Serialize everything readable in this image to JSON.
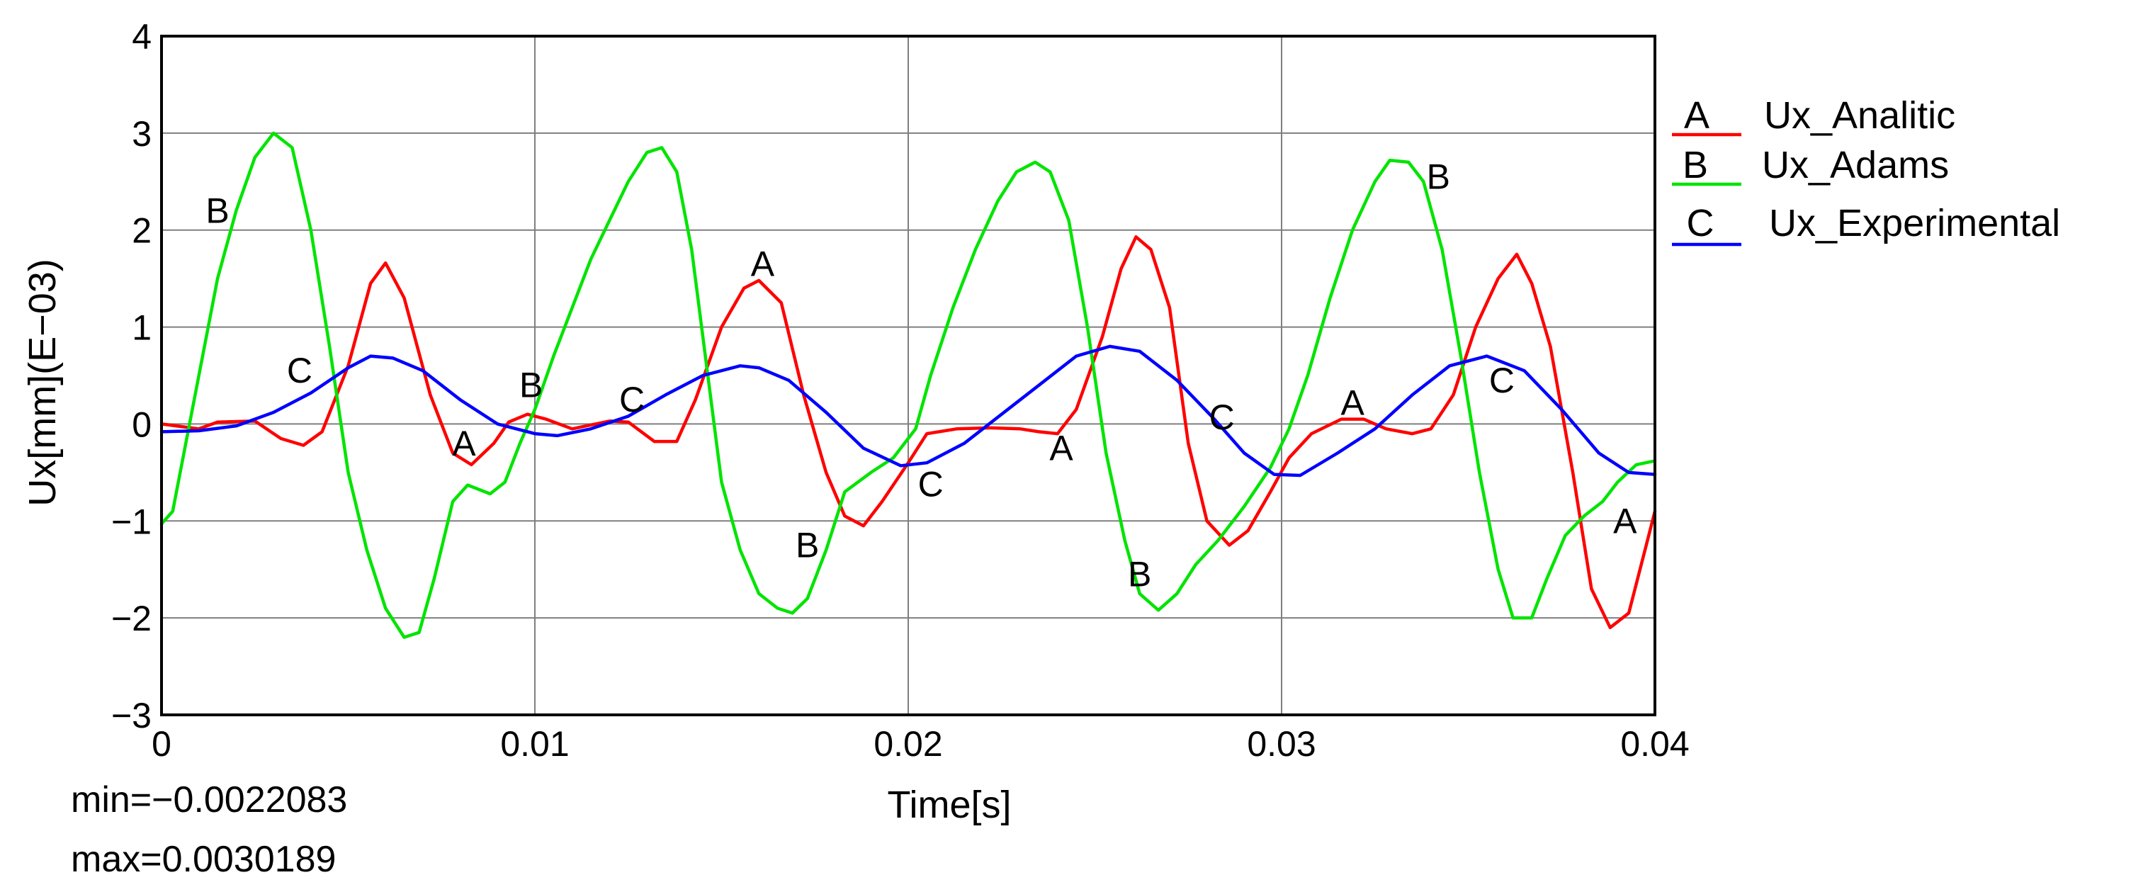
{
  "chart_data": {
    "type": "line",
    "xlabel": "Time[s]",
    "ylabel": "Ux[mm](E−03)",
    "xlim": [
      0,
      0.04
    ],
    "ylim": [
      -3,
      4
    ],
    "x_ticks": [
      {
        "value": 0,
        "label": "0"
      },
      {
        "value": 0.01,
        "label": "0.01"
      },
      {
        "value": 0.02,
        "label": "0.02"
      },
      {
        "value": 0.03,
        "label": "0.03"
      },
      {
        "value": 0.04,
        "label": "0.04"
      }
    ],
    "y_ticks": [
      {
        "value": -3,
        "label": "−3"
      },
      {
        "value": -2,
        "label": "−2"
      },
      {
        "value": -1,
        "label": "−1"
      },
      {
        "value": 0,
        "label": "0"
      },
      {
        "value": 1,
        "label": "1"
      },
      {
        "value": 2,
        "label": "2"
      },
      {
        "value": 3,
        "label": "3"
      },
      {
        "value": 4,
        "label": "4"
      }
    ],
    "grid": true,
    "legend_position": "right",
    "stats": {
      "min": "min=−0.0022083",
      "max": "max=0.0030189"
    },
    "series": [
      {
        "letter": "A",
        "name": "Ux_Analitic",
        "color": "#ff0000",
        "points": [
          [
            0,
            0
          ],
          [
            0.001,
            -0.05
          ],
          [
            0.0015,
            0.02
          ],
          [
            0.0025,
            0.03
          ],
          [
            0.0032,
            -0.15
          ],
          [
            0.0038,
            -0.22
          ],
          [
            0.0043,
            -0.08
          ],
          [
            0.005,
            0.6
          ],
          [
            0.0056,
            1.45
          ],
          [
            0.006,
            1.66
          ],
          [
            0.0065,
            1.3
          ],
          [
            0.0072,
            0.3
          ],
          [
            0.0078,
            -0.3
          ],
          [
            0.0083,
            -0.42
          ],
          [
            0.0089,
            -0.2
          ],
          [
            0.0093,
            0.02
          ],
          [
            0.0098,
            0.1
          ],
          [
            0.0103,
            0.05
          ],
          [
            0.011,
            -0.05
          ],
          [
            0.012,
            0.03
          ],
          [
            0.0125,
            0.02
          ],
          [
            0.0132,
            -0.18
          ],
          [
            0.0138,
            -0.18
          ],
          [
            0.0143,
            0.25
          ],
          [
            0.015,
            1.0
          ],
          [
            0.0156,
            1.4
          ],
          [
            0.016,
            1.48
          ],
          [
            0.0166,
            1.25
          ],
          [
            0.0172,
            0.3
          ],
          [
            0.0178,
            -0.5
          ],
          [
            0.0183,
            -0.95
          ],
          [
            0.0188,
            -1.05
          ],
          [
            0.0193,
            -0.8
          ],
          [
            0.02,
            -0.4
          ],
          [
            0.0205,
            -0.1
          ],
          [
            0.0213,
            -0.05
          ],
          [
            0.0222,
            -0.04
          ],
          [
            0.023,
            -0.05
          ],
          [
            0.0235,
            -0.08
          ],
          [
            0.024,
            -0.1
          ],
          [
            0.0245,
            0.15
          ],
          [
            0.0252,
            0.9
          ],
          [
            0.0257,
            1.6
          ],
          [
            0.0261,
            1.93
          ],
          [
            0.0265,
            1.8
          ],
          [
            0.027,
            1.2
          ],
          [
            0.0275,
            -0.2
          ],
          [
            0.028,
            -1.0
          ],
          [
            0.0286,
            -1.25
          ],
          [
            0.0291,
            -1.1
          ],
          [
            0.0297,
            -0.7
          ],
          [
            0.0302,
            -0.35
          ],
          [
            0.0308,
            -0.1
          ],
          [
            0.0316,
            0.05
          ],
          [
            0.0322,
            0.05
          ],
          [
            0.0328,
            -0.05
          ],
          [
            0.0335,
            -0.1
          ],
          [
            0.034,
            -0.05
          ],
          [
            0.0346,
            0.3
          ],
          [
            0.0352,
            1.0
          ],
          [
            0.0358,
            1.5
          ],
          [
            0.0363,
            1.75
          ],
          [
            0.0367,
            1.45
          ],
          [
            0.0372,
            0.8
          ],
          [
            0.0378,
            -0.5
          ],
          [
            0.0383,
            -1.7
          ],
          [
            0.0388,
            -2.1
          ],
          [
            0.0393,
            -1.95
          ],
          [
            0.0398,
            -1.2
          ],
          [
            0.04,
            -0.9
          ]
        ]
      },
      {
        "letter": "B",
        "name": "Ux_Adams",
        "color": "#00e400",
        "points": [
          [
            0,
            -1.03
          ],
          [
            0.0003,
            -0.9
          ],
          [
            0.0006,
            -0.3
          ],
          [
            0.001,
            0.5
          ],
          [
            0.0015,
            1.5
          ],
          [
            0.002,
            2.2
          ],
          [
            0.0025,
            2.75
          ],
          [
            0.003,
            3.0
          ],
          [
            0.0035,
            2.85
          ],
          [
            0.004,
            2.0
          ],
          [
            0.0045,
            0.8
          ],
          [
            0.005,
            -0.5
          ],
          [
            0.0055,
            -1.3
          ],
          [
            0.006,
            -1.9
          ],
          [
            0.0065,
            -2.2
          ],
          [
            0.0069,
            -2.15
          ],
          [
            0.0073,
            -1.6
          ],
          [
            0.0078,
            -0.8
          ],
          [
            0.0082,
            -0.63
          ],
          [
            0.0088,
            -0.72
          ],
          [
            0.0092,
            -0.6
          ],
          [
            0.0096,
            -0.2
          ],
          [
            0.01,
            0.15
          ],
          [
            0.0105,
            0.7
          ],
          [
            0.011,
            1.2
          ],
          [
            0.0115,
            1.7
          ],
          [
            0.012,
            2.1
          ],
          [
            0.0125,
            2.5
          ],
          [
            0.013,
            2.8
          ],
          [
            0.0134,
            2.85
          ],
          [
            0.0138,
            2.6
          ],
          [
            0.0142,
            1.8
          ],
          [
            0.0146,
            0.6
          ],
          [
            0.015,
            -0.6
          ],
          [
            0.0155,
            -1.3
          ],
          [
            0.016,
            -1.75
          ],
          [
            0.0165,
            -1.9
          ],
          [
            0.0169,
            -1.95
          ],
          [
            0.0173,
            -1.8
          ],
          [
            0.0178,
            -1.3
          ],
          [
            0.0183,
            -0.7
          ],
          [
            0.019,
            -0.5
          ],
          [
            0.0196,
            -0.35
          ],
          [
            0.0202,
            -0.05
          ],
          [
            0.0206,
            0.5
          ],
          [
            0.0212,
            1.2
          ],
          [
            0.0218,
            1.8
          ],
          [
            0.0224,
            2.3
          ],
          [
            0.0229,
            2.6
          ],
          [
            0.0234,
            2.7
          ],
          [
            0.0238,
            2.6
          ],
          [
            0.0243,
            2.1
          ],
          [
            0.0248,
            1.0
          ],
          [
            0.0253,
            -0.3
          ],
          [
            0.0258,
            -1.2
          ],
          [
            0.0262,
            -1.75
          ],
          [
            0.0267,
            -1.92
          ],
          [
            0.0272,
            -1.75
          ],
          [
            0.0277,
            -1.45
          ],
          [
            0.0283,
            -1.2
          ],
          [
            0.029,
            -0.85
          ],
          [
            0.0297,
            -0.45
          ],
          [
            0.0302,
            -0.05
          ],
          [
            0.0307,
            0.5
          ],
          [
            0.0313,
            1.3
          ],
          [
            0.0319,
            2.0
          ],
          [
            0.0325,
            2.5
          ],
          [
            0.0329,
            2.72
          ],
          [
            0.0334,
            2.7
          ],
          [
            0.0338,
            2.5
          ],
          [
            0.0343,
            1.8
          ],
          [
            0.0348,
            0.7
          ],
          [
            0.0353,
            -0.5
          ],
          [
            0.0358,
            -1.5
          ],
          [
            0.0362,
            -2.0
          ],
          [
            0.0367,
            -2.0
          ],
          [
            0.0371,
            -1.6
          ],
          [
            0.0376,
            -1.15
          ],
          [
            0.0381,
            -0.95
          ],
          [
            0.0386,
            -0.8
          ],
          [
            0.039,
            -0.6
          ],
          [
            0.0395,
            -0.42
          ],
          [
            0.04,
            -0.38
          ]
        ]
      },
      {
        "letter": "C",
        "name": "Ux_Experimental",
        "color": "#0000ff",
        "points": [
          [
            0,
            -0.08
          ],
          [
            0.001,
            -0.07
          ],
          [
            0.002,
            -0.02
          ],
          [
            0.003,
            0.12
          ],
          [
            0.004,
            0.32
          ],
          [
            0.005,
            0.58
          ],
          [
            0.0056,
            0.7
          ],
          [
            0.0062,
            0.68
          ],
          [
            0.007,
            0.55
          ],
          [
            0.008,
            0.25
          ],
          [
            0.009,
            0.0
          ],
          [
            0.01,
            -0.1
          ],
          [
            0.0106,
            -0.12
          ],
          [
            0.0115,
            -0.05
          ],
          [
            0.0125,
            0.08
          ],
          [
            0.0135,
            0.3
          ],
          [
            0.0145,
            0.5
          ],
          [
            0.0155,
            0.6
          ],
          [
            0.016,
            0.58
          ],
          [
            0.0168,
            0.45
          ],
          [
            0.0178,
            0.12
          ],
          [
            0.0188,
            -0.25
          ],
          [
            0.0198,
            -0.43
          ],
          [
            0.0205,
            -0.4
          ],
          [
            0.0215,
            -0.2
          ],
          [
            0.0225,
            0.1
          ],
          [
            0.0235,
            0.4
          ],
          [
            0.0245,
            0.7
          ],
          [
            0.0254,
            0.8
          ],
          [
            0.0262,
            0.75
          ],
          [
            0.0272,
            0.45
          ],
          [
            0.0282,
            0.05
          ],
          [
            0.029,
            -0.3
          ],
          [
            0.0298,
            -0.52
          ],
          [
            0.0305,
            -0.53
          ],
          [
            0.0315,
            -0.3
          ],
          [
            0.0325,
            -0.05
          ],
          [
            0.0335,
            0.3
          ],
          [
            0.0345,
            0.6
          ],
          [
            0.0355,
            0.7
          ],
          [
            0.0365,
            0.55
          ],
          [
            0.0375,
            0.15
          ],
          [
            0.0385,
            -0.3
          ],
          [
            0.0393,
            -0.5
          ],
          [
            0.04,
            -0.52
          ]
        ]
      }
    ],
    "curve_markers": [
      {
        "series": "A",
        "label": "A",
        "x": 0.0081,
        "y": -0.2
      },
      {
        "series": "A",
        "label": "A",
        "x": 0.0161,
        "y": 1.65
      },
      {
        "series": "A",
        "label": "A",
        "x": 0.0241,
        "y": -0.25
      },
      {
        "series": "A",
        "label": "A",
        "x": 0.0319,
        "y": 0.22
      },
      {
        "series": "A",
        "label": "A",
        "x": 0.0392,
        "y": -1.0
      },
      {
        "series": "B",
        "label": "B",
        "x": 0.0015,
        "y": 2.2
      },
      {
        "series": "B",
        "label": "B",
        "x": 0.0099,
        "y": 0.4
      },
      {
        "series": "B",
        "label": "B",
        "x": 0.0173,
        "y": -1.25
      },
      {
        "series": "B",
        "label": "B",
        "x": 0.0262,
        "y": -1.55
      },
      {
        "series": "B",
        "label": "B",
        "x": 0.0342,
        "y": 2.55
      },
      {
        "series": "C",
        "label": "C",
        "x": 0.0037,
        "y": 0.55
      },
      {
        "series": "C",
        "label": "C",
        "x": 0.0126,
        "y": 0.25
      },
      {
        "series": "C",
        "label": "C",
        "x": 0.0206,
        "y": -0.62
      },
      {
        "series": "C",
        "label": "C",
        "x": 0.0284,
        "y": 0.07
      },
      {
        "series": "C",
        "label": "C",
        "x": 0.0359,
        "y": 0.45
      }
    ]
  }
}
